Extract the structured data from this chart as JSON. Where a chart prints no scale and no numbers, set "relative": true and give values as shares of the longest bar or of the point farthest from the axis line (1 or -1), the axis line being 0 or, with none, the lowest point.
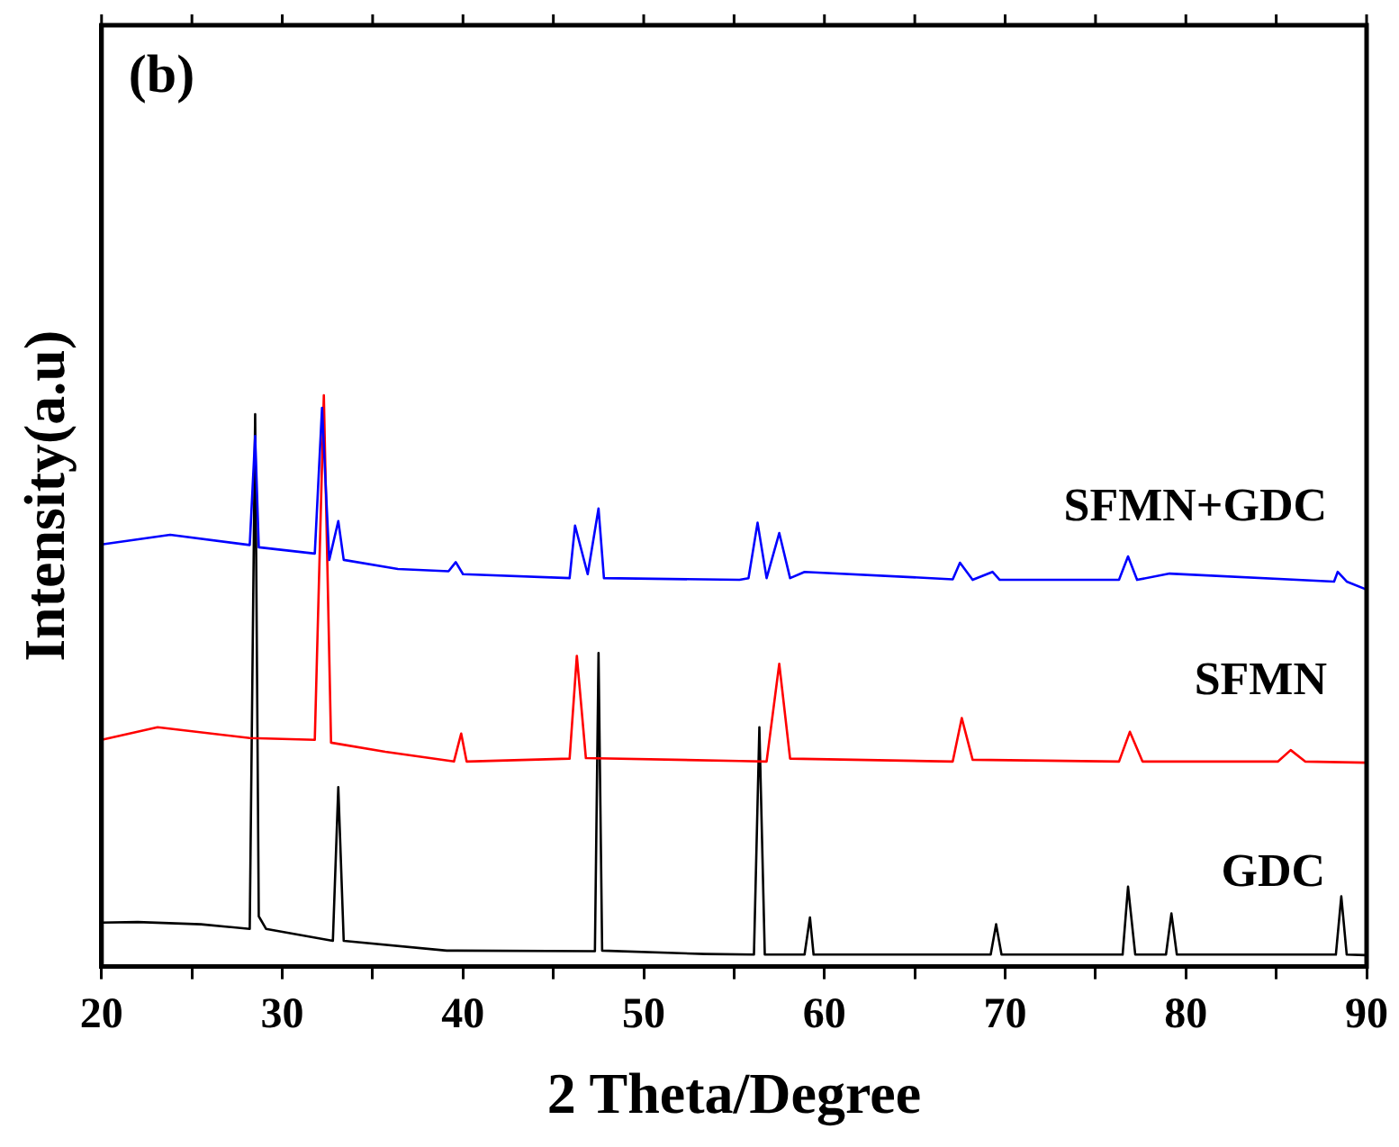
{
  "chart_data": {
    "type": "line",
    "xlabel": "2 Theta/Degree",
    "ylabel": "Intensity(a.u)",
    "annotations": [
      "(b)"
    ],
    "relative": true,
    "legend": false,
    "xlim": [
      20,
      90
    ],
    "xticks": [
      20,
      {
        "value": 25,
        "label": null
      },
      30,
      {
        "value": 35,
        "label": null
      },
      40,
      {
        "value": 45,
        "label": null
      },
      50,
      {
        "value": 55,
        "label": null
      },
      60,
      {
        "value": 65,
        "label": null
      },
      70,
      {
        "value": 75,
        "label": null
      },
      80,
      {
        "value": 85,
        "label": null
      },
      90
    ],
    "series": [
      {
        "name": "SFMN+GDC",
        "color": "#0000ff",
        "x": [
          20,
          23.8,
          28.2,
          28.5,
          28.7,
          31.8,
          32.2,
          32.6,
          33.1,
          33.4,
          36.4,
          39.2,
          39.6,
          40.0,
          45.9,
          46.2,
          46.9,
          47.5,
          47.8,
          55.3,
          55.8,
          56.3,
          56.8,
          57.5,
          58.1,
          58.9,
          67.1,
          67.5,
          68.2,
          69.3,
          69.7,
          76.3,
          76.8,
          77.3,
          79.1,
          88.2,
          88.4,
          88.9,
          90.0
        ],
        "values": [
          0.739,
          0.756,
          0.738,
          0.929,
          0.734,
          0.723,
          0.978,
          0.712,
          0.78,
          0.712,
          0.696,
          0.692,
          0.708,
          0.687,
          0.68,
          0.772,
          0.687,
          0.802,
          0.68,
          0.677,
          0.68,
          0.777,
          0.68,
          0.759,
          0.68,
          0.691,
          0.678,
          0.707,
          0.677,
          0.691,
          0.677,
          0.677,
          0.718,
          0.677,
          0.688,
          0.674,
          0.691,
          0.674,
          0.66
        ]
      },
      {
        "name": "SFMN",
        "color": "#ff0000",
        "x": [
          20,
          23.1,
          28.2,
          31.8,
          32.3,
          32.7,
          35.7,
          39.5,
          39.9,
          40.2,
          45.9,
          46.3,
          46.8,
          55.3,
          56.8,
          57.5,
          58.1,
          67.1,
          67.6,
          68.2,
          76.3,
          76.9,
          77.6,
          85.1,
          85.8,
          86.6,
          90.0
        ],
        "values": [
          0.397,
          0.419,
          0.4,
          0.397,
          1.0,
          0.392,
          0.376,
          0.359,
          0.408,
          0.359,
          0.364,
          0.544,
          0.365,
          0.36,
          0.359,
          0.53,
          0.364,
          0.359,
          0.435,
          0.362,
          0.359,
          0.411,
          0.359,
          0.359,
          0.379,
          0.359,
          0.357
        ]
      },
      {
        "name": "GDC",
        "color": "#000000",
        "x": [
          20,
          22,
          25.5,
          28.2,
          28.5,
          28.7,
          29.1,
          32.8,
          33.1,
          33.4,
          39.1,
          47.3,
          47.5,
          47.7,
          53.4,
          56.1,
          56.4,
          56.7,
          58.9,
          59.2,
          59.4,
          69.2,
          69.5,
          69.8,
          76.5,
          76.8,
          77.2,
          78.9,
          79.2,
          79.5,
          88.3,
          88.6,
          88.9,
          89.9
        ],
        "values": [
          0.077,
          0.078,
          0.074,
          0.066,
          0.967,
          0.088,
          0.066,
          0.045,
          0.314,
          0.045,
          0.028,
          0.027,
          0.549,
          0.028,
          0.022,
          0.021,
          0.419,
          0.021,
          0.021,
          0.086,
          0.021,
          0.021,
          0.074,
          0.021,
          0.021,
          0.14,
          0.021,
          0.021,
          0.093,
          0.021,
          0.021,
          0.123,
          0.021,
          0.02
        ]
      }
    ]
  }
}
